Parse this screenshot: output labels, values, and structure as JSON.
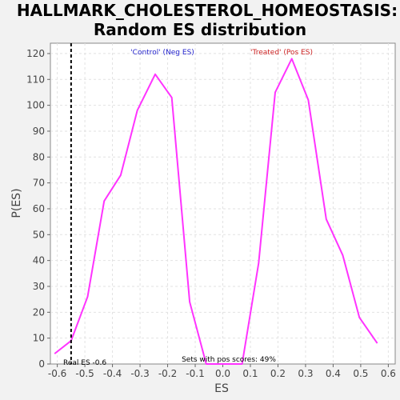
{
  "chart_data": {
    "type": "line",
    "title_line1": "HALLMARK_CHOLESTEROL_HOMEOSTASIS:",
    "title_line2": "Random ES distribution",
    "xlabel": "ES",
    "ylabel": "P(ES)",
    "xlim": [
      -0.625,
      0.625
    ],
    "ylim": [
      0,
      124
    ],
    "xticks": [
      -0.6,
      -0.5,
      -0.4,
      -0.3,
      -0.2,
      -0.1,
      0.0,
      0.1,
      0.2,
      0.3,
      0.4,
      0.5,
      0.6
    ],
    "xtick_labels": [
      "-0.6",
      "-0.5",
      "-0.4",
      "-0.3",
      "-0.2",
      "-0.1",
      "0.0",
      "0.1",
      "0.2",
      "0.3",
      "0.4",
      "0.5",
      "0.6"
    ],
    "yticks": [
      0,
      10,
      20,
      30,
      40,
      50,
      60,
      70,
      80,
      90,
      100,
      110,
      120
    ],
    "grid": true,
    "series": [
      {
        "color": "#ff33ff",
        "x": [
          -0.61,
          -0.55,
          -0.49,
          -0.43,
          -0.37,
          -0.31,
          -0.245,
          -0.185,
          -0.12,
          -0.06,
          0.07,
          0.13,
          0.19,
          0.25,
          0.31,
          0.375,
          0.435,
          0.495,
          0.56
        ],
        "y": [
          4,
          9,
          26,
          63,
          73,
          98,
          112,
          103,
          24,
          0,
          0,
          39,
          105,
          118,
          102,
          56,
          42,
          18,
          8
        ]
      }
    ],
    "real_es": -0.55,
    "real_es_color": "#000000",
    "annotations": {
      "control": "'Control' (Neg ES)",
      "control_color": "#2222cc",
      "treated": "'Treated' (Pos ES)",
      "treated_color": "#cc2222",
      "real_es": "Real ES -0.6",
      "pos_scores": "Sets with pos scores: 49%"
    }
  }
}
